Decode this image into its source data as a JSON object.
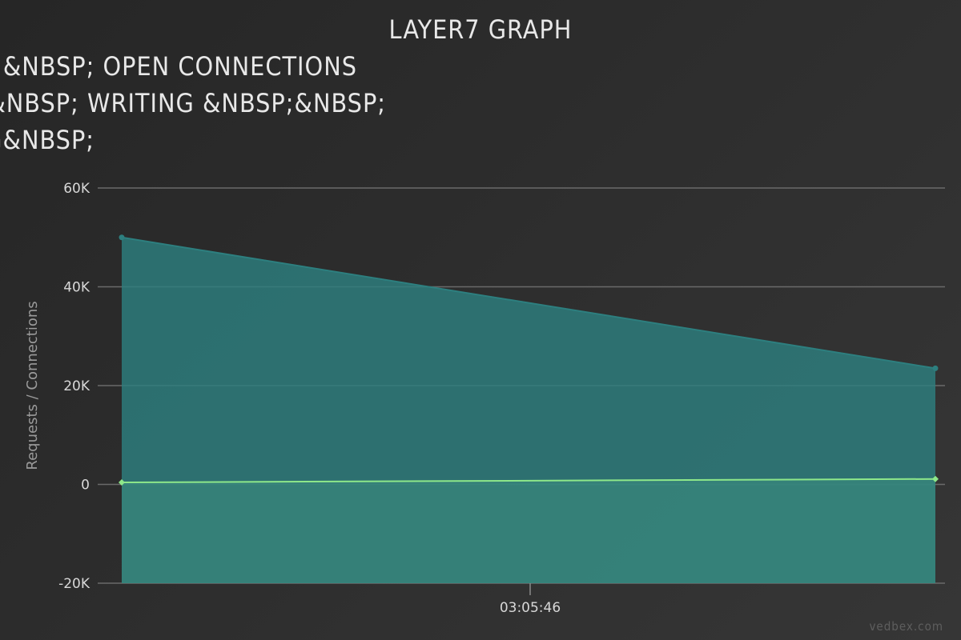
{
  "chart_data": {
    "type": "area",
    "title": "LAYER7 GRAPH",
    "legend_lines": [
      "P;&NBSP; OPEN CONNECTIONS",
      "&NBSP; WRITING &NBSP;&NBSP;",
      "G&NBSP;"
    ],
    "ylabel": "Requests / Connections",
    "ylim": [
      -20000,
      60000
    ],
    "yticks": [
      -20000,
      0,
      20000,
      40000,
      60000
    ],
    "ytick_labels": [
      "-20K",
      "0",
      "20K",
      "40K",
      "60K"
    ],
    "x": [
      "t0",
      "t1"
    ],
    "xtick_label": "03:05:46",
    "grid": true,
    "series": [
      {
        "color": "#2d7f7f",
        "values": [
          50000,
          23500
        ]
      },
      {
        "color": "#8ee88a",
        "values": [
          400,
          1100
        ]
      }
    ]
  },
  "watermark": "vedbex.com"
}
